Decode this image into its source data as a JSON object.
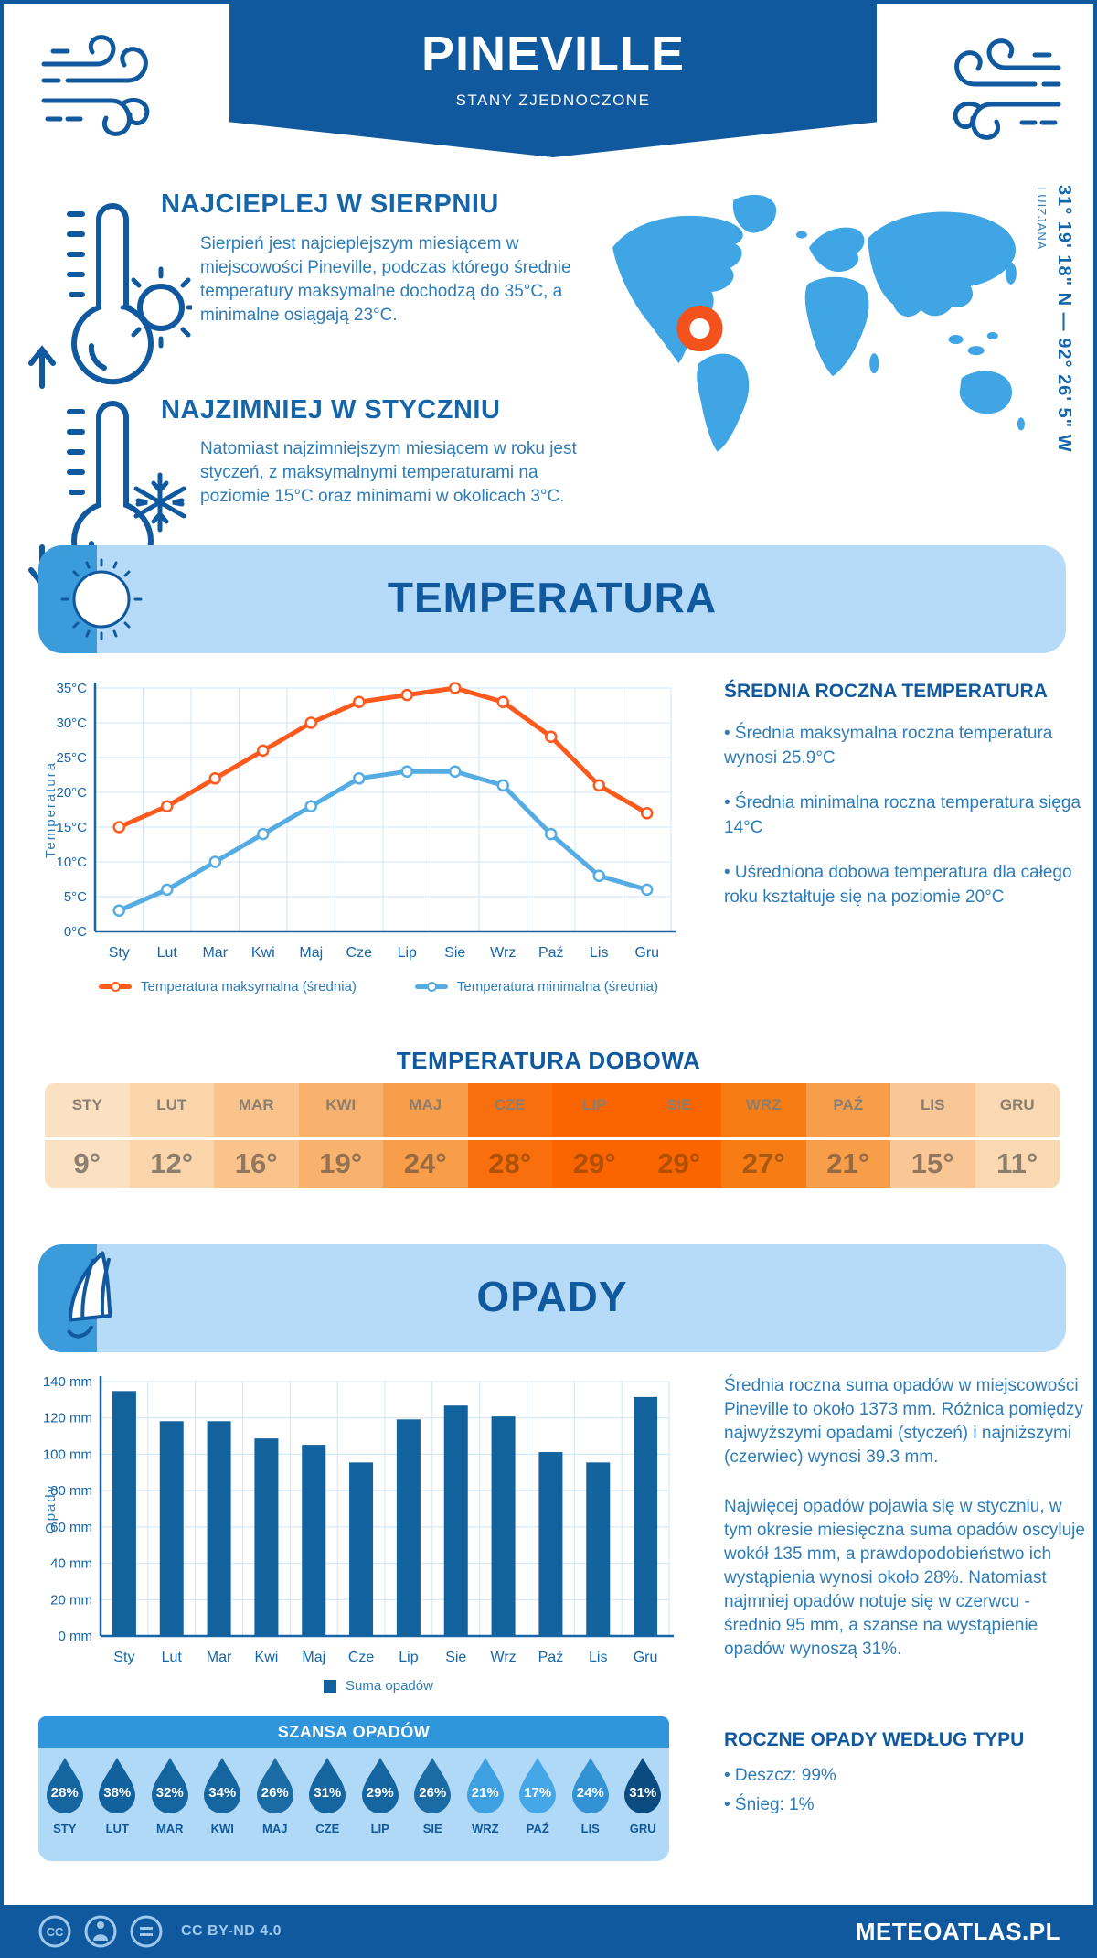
{
  "header": {
    "title": "PINEVILLE",
    "subtitle": "STANY ZJEDNOCZONE",
    "banner_color": "#11599E"
  },
  "sections": {
    "warmest": {
      "heading": "NAJCIEPLEJ W SIERPNIU",
      "body": "Sierpień jest najcieplejszym miesiącem w miejscowości Pineville, podczas którego średnie temperatury maksymalne dochodzą do 35°C, a minimalne osiągają 23°C."
    },
    "coldest": {
      "heading": "NAJZIMNIEJ W STYCZNIU",
      "body": "Natomiast najzimniejszym miesiącem w roku jest styczeń, z maksymalnymi temperaturami na poziomie 15°C oraz minimami w okolicach 3°C."
    }
  },
  "map": {
    "coords": "31° 19' 18\" N — 92° 26' 5\" W",
    "region": "LUIZJANA",
    "map_color": "#3FA5E5",
    "marker_color": "#F4521C"
  },
  "temperature": {
    "band_title": "TEMPERATURA",
    "aside_heading": "ŚREDNIA ROCZNA TEMPERATURA",
    "bullets": [
      "• Średnia maksymalna roczna temperatura wynosi 25.9°C",
      "• Średnia minimalna roczna temperatura sięga 14°C",
      "• Uśredniona dobowa temperatura dla całego roku kształtuje się na poziomie 20°C"
    ],
    "daily_title": "TEMPERATURA DOBOWA",
    "table": {
      "months": [
        "STY",
        "LUT",
        "MAR",
        "KWI",
        "MAJ",
        "CZE",
        "LIP",
        "SIE",
        "WRZ",
        "PAŹ",
        "LIS",
        "GRU"
      ],
      "values": [
        "9°",
        "12°",
        "16°",
        "19°",
        "24°",
        "28°",
        "29°",
        "29°",
        "27°",
        "21°",
        "15°",
        "11°"
      ],
      "bg_colors": [
        "#FBE0C2",
        "#FAD5AC",
        "#F9C38B",
        "#F9B26E",
        "#F89D49",
        "#F96F0E",
        "#FA6502",
        "#FA6502",
        "#F87C14",
        "#F89D49",
        "#F9C795",
        "#FAD8B1"
      ],
      "value_colors": [
        "#8B8173",
        "#8D7E6C",
        "#92775C",
        "#957150",
        "#986A41",
        "#AF5208",
        "#B34F03",
        "#B34F03",
        "#A95A10",
        "#986A41",
        "#92775C",
        "#8D7E6C"
      ]
    }
  },
  "precipitation": {
    "band_title": "OPADY",
    "paragraphs": [
      "Średnia roczna suma opadów w miejscowości Pineville to około 1373 mm. Różnica pomiędzy najwyższymi opadami (styczeń) i najniższymi (czerwiec) wynosi 39.3 mm.",
      "Najwięcej opadów pojawia się w styczniu, w tym okresie miesięczna suma opadów oscyluje wokół 135 mm, a prawdopodobieństwo ich wystąpienia wynosi około 28%. Natomiast najmniej opadów notuje się w czerwcu - średnio 95 mm, a szanse na wystąpienie opadów wynoszą 31%."
    ],
    "types_heading": "ROCZNE OPADY WEDŁUG TYPU",
    "type_bullets": [
      "• Deszcz: 99%",
      "• Śnieg: 1%"
    ],
    "chance": {
      "title": "SZANSA OPADÓW",
      "items": [
        {
          "month": "STY",
          "value": "28%",
          "color": "#1565A1"
        },
        {
          "month": "LUT",
          "value": "38%",
          "color": "#10619E"
        },
        {
          "month": "MAR",
          "value": "32%",
          "color": "#1565A1"
        },
        {
          "month": "KWI",
          "value": "34%",
          "color": "#1565A1"
        },
        {
          "month": "MAJ",
          "value": "26%",
          "color": "#1B6BA5"
        },
        {
          "month": "CZE",
          "value": "31%",
          "color": "#1565A1"
        },
        {
          "month": "LIP",
          "value": "29%",
          "color": "#1565A1"
        },
        {
          "month": "SIE",
          "value": "26%",
          "color": "#1B6BA5"
        },
        {
          "month": "WRZ",
          "value": "21%",
          "color": "#3E9FE1"
        },
        {
          "month": "PAŹ",
          "value": "17%",
          "color": "#45A6E8"
        },
        {
          "month": "LIS",
          "value": "24%",
          "color": "#3392D3"
        },
        {
          "month": "GRU",
          "value": "31%",
          "color": "#0B4B80"
        }
      ]
    }
  },
  "chart_data": [
    {
      "type": "line",
      "title": "",
      "categories": [
        "Sty",
        "Lut",
        "Mar",
        "Kwi",
        "Maj",
        "Cze",
        "Lip",
        "Sie",
        "Wrz",
        "Paź",
        "Lis",
        "Gru"
      ],
      "series": [
        {
          "name": "Temperatura maksymalna (średnia)",
          "color": "#FF5A1E",
          "values": [
            15,
            18,
            22,
            26,
            30,
            33,
            34,
            35,
            33,
            28,
            21,
            17
          ]
        },
        {
          "name": "Temperatura minimalna (średnia)",
          "color": "#55ACE3",
          "values": [
            3,
            6,
            10,
            14,
            18,
            22,
            23,
            23,
            21,
            14,
            8,
            6
          ]
        }
      ],
      "xlabel": "",
      "ylabel": "Temperatura",
      "ylim": [
        0,
        35
      ],
      "ytick_step": 5,
      "ytick_suffix": "°C",
      "grid": true,
      "legend_position": "bottom"
    },
    {
      "type": "bar",
      "title": "",
      "categories": [
        "Sty",
        "Lut",
        "Mar",
        "Kwi",
        "Maj",
        "Cze",
        "Lip",
        "Sie",
        "Wrz",
        "Paź",
        "Lis",
        "Gru"
      ],
      "series": [
        {
          "name": "Suma opadów",
          "color": "#12629E",
          "values": [
            134.8,
            118.2,
            118.2,
            108.7,
            105.2,
            95.5,
            119.2,
            126.8,
            120.8,
            101.2,
            95.5,
            131.5
          ]
        }
      ],
      "xlabel": "",
      "ylabel": "Opady",
      "ylim": [
        0,
        140
      ],
      "ytick_step": 20,
      "ytick_suffix": " mm",
      "grid": true,
      "legend_position": "bottom"
    }
  ],
  "footer": {
    "license": "CC BY-ND 4.0",
    "brand": "METEOATLAS.PL"
  }
}
